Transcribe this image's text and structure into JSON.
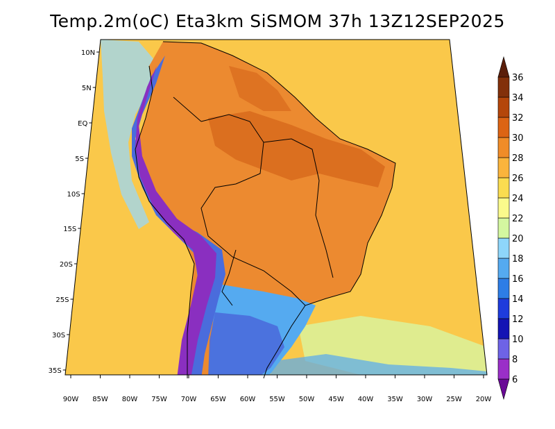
{
  "title": "Temp.2m(oC) Eta3km SiSMOM 37h 13Z12SEP2025",
  "lat_labels": [
    "10N",
    "5N",
    "EQ",
    "5S",
    "10S",
    "15S",
    "20S",
    "25S",
    "30S",
    "35S"
  ],
  "lon_labels": [
    "90W",
    "85W",
    "80W",
    "75W",
    "70W",
    "65W",
    "60W",
    "55W",
    "50W",
    "45W",
    "40W",
    "35W",
    "30W",
    "25W",
    "20W"
  ],
  "colorbar": {
    "labels": [
      "6",
      "8",
      "10",
      "12",
      "14",
      "16",
      "18",
      "20",
      "22",
      "24",
      "26",
      "28",
      "30",
      "32",
      "34",
      "36"
    ],
    "colors": [
      "#6a0a96",
      "#9a2fc8",
      "#6e63e6",
      "#1414b4",
      "#1e3cdc",
      "#2d7de6",
      "#55aaf0",
      "#8ed6fa",
      "#d4f7a0",
      "#fafa8c",
      "#fadc50",
      "#fab43c",
      "#f08c28",
      "#dc6414",
      "#b4460a",
      "#82300a",
      "#5a1e0a"
    ]
  },
  "fill_colors": {
    "ocean": "#fac84a",
    "land_hot": "#ec8a30",
    "land_very_hot": "#d86a1c",
    "andes_cold": "#8a2fc0",
    "andes_cool": "#4a6cdc",
    "south_cool": "#55aaf0",
    "pacific_cool": "#9ad8f8",
    "atlantic_pale": "#d8f5a0"
  }
}
